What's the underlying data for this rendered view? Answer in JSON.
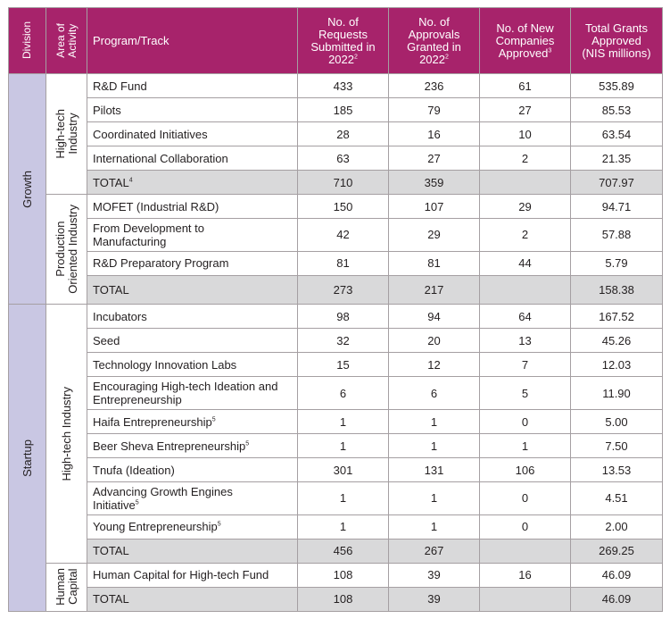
{
  "headers": {
    "division": "Division",
    "area": [
      "Area of",
      "Activity"
    ],
    "program": "Program/Track",
    "requests": [
      "No. of",
      "Requests",
      "Submitted in",
      "2022"
    ],
    "requests_sup": "2",
    "approvals": [
      "No. of",
      "Approvals",
      "Granted in",
      "2022"
    ],
    "approvals_sup": "2",
    "new_companies": [
      "No. of New",
      "Companies",
      "Approved"
    ],
    "new_companies_sup": "3",
    "grants": [
      "Total Grants",
      "Approved",
      "(NIS millions)"
    ]
  },
  "divisions": [
    {
      "name": "Growth",
      "areas": [
        {
          "name_lines": [
            "High-tech",
            "Industry"
          ],
          "rows": [
            {
              "program": "R&D Fund",
              "sup": "",
              "requests": "433",
              "approvals": "236",
              "new": "61",
              "grants": "535.89"
            },
            {
              "program": "Pilots",
              "sup": "",
              "requests": "185",
              "approvals": "79",
              "new": "27",
              "grants": "85.53"
            },
            {
              "program": "Coordinated Initiatives",
              "sup": "",
              "requests": "28",
              "approvals": "16",
              "new": "10",
              "grants": "63.54"
            },
            {
              "program": "International Collaboration",
              "sup": "",
              "requests": "63",
              "approvals": "27",
              "new": "2",
              "grants": "21.35"
            }
          ],
          "total": {
            "program": "TOTAL",
            "sup": "4",
            "requests": "710",
            "approvals": "359",
            "new": "",
            "grants": "707.97"
          }
        },
        {
          "name_lines": [
            "Production",
            "Oriented Industry"
          ],
          "rows": [
            {
              "program": "MOFET (Industrial R&D)",
              "sup": "",
              "requests": "150",
              "approvals": "107",
              "new": "29",
              "grants": "94.71"
            },
            {
              "program_lines": [
                "From  Development to",
                "Manufacturing"
              ],
              "sup": "",
              "requests": "42",
              "approvals": "29",
              "new": "2",
              "grants": "57.88"
            },
            {
              "program": "R&D Preparatory Program",
              "sup": "",
              "requests": "81",
              "approvals": "81",
              "new": "44",
              "grants": "5.79"
            }
          ],
          "total": {
            "program": "TOTAL",
            "sup": "",
            "requests": "273",
            "approvals": "217",
            "new": "",
            "grants": "158.38"
          }
        }
      ]
    },
    {
      "name": "Startup",
      "areas": [
        {
          "name_lines": [
            "High-tech Industry"
          ],
          "rows": [
            {
              "program": "Incubators",
              "sup": "",
              "requests": "98",
              "approvals": "94",
              "new": "64",
              "grants": "167.52"
            },
            {
              "program": "Seed",
              "sup": "",
              "requests": "32",
              "approvals": "20",
              "new": "13",
              "grants": "45.26"
            },
            {
              "program": "Technology Innovation Labs",
              "sup": "",
              "requests": "15",
              "approvals": "12",
              "new": "7",
              "grants": "12.03"
            },
            {
              "program_lines": [
                "Encouraging High-tech Ideation and",
                "Entrepreneurship"
              ],
              "sup": "",
              "requests": "6",
              "approvals": "6",
              "new": "5",
              "grants": "11.90"
            },
            {
              "program": "Haifa Entrepreneurship",
              "sup": "5",
              "requests": "1",
              "approvals": "1",
              "new": "0",
              "grants": "5.00"
            },
            {
              "program": "Beer Sheva Entrepreneurship",
              "sup": "5",
              "requests": "1",
              "approvals": "1",
              "new": "1",
              "grants": "7.50"
            },
            {
              "program": "Tnufa (Ideation)",
              "sup": "",
              "requests": "301",
              "approvals": "131",
              "new": "106",
              "grants": "13.53"
            },
            {
              "program_lines": [
                "Advancing Growth Engines",
                "Initiative"
              ],
              "sup": "5",
              "requests": "1",
              "approvals": "1",
              "new": "0",
              "grants": "4.51"
            },
            {
              "program": "Young Entrepreneurship",
              "sup": "5",
              "requests": "1",
              "approvals": "1",
              "new": "0",
              "grants": "2.00"
            }
          ],
          "total": {
            "program": "TOTAL",
            "sup": "",
            "requests": "456",
            "approvals": "267",
            "new": "",
            "grants": "269.25"
          }
        },
        {
          "name_lines": [
            "Human",
            "Capital"
          ],
          "rows": [
            {
              "program": "Human Capital for High-tech Fund",
              "sup": "",
              "requests": "108",
              "approvals": "39",
              "new": "16",
              "grants": "46.09"
            }
          ],
          "total": {
            "program": "TOTAL",
            "sup": "",
            "requests": "108",
            "approvals": "39",
            "new": "",
            "grants": "46.09"
          }
        }
      ]
    }
  ]
}
